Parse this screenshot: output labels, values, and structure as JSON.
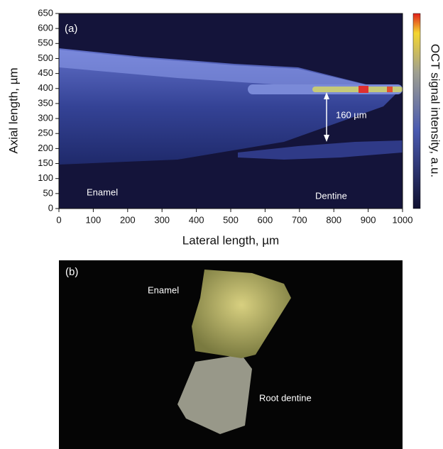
{
  "chart_data": {
    "type": "heatmap",
    "panel_label": "(a)",
    "xlabel": "Lateral length, µm",
    "ylabel": "Axial length, µm",
    "xlim": [
      0,
      1000
    ],
    "xticks": [
      0,
      100,
      200,
      300,
      400,
      500,
      600,
      700,
      800,
      900,
      1000
    ],
    "ylim": [
      0,
      650
    ],
    "yticks": [
      0,
      50,
      100,
      150,
      200,
      250,
      300,
      350,
      400,
      450,
      500,
      550,
      600,
      650
    ],
    "colorbar_label": "OCT signal intensity, a.u.",
    "annotations": [
      "Enamel",
      "Dentine",
      "160 µm"
    ]
  },
  "image_panel": {
    "panel_label": "(b)",
    "labels": [
      "Enamel",
      "Root dentine"
    ]
  }
}
